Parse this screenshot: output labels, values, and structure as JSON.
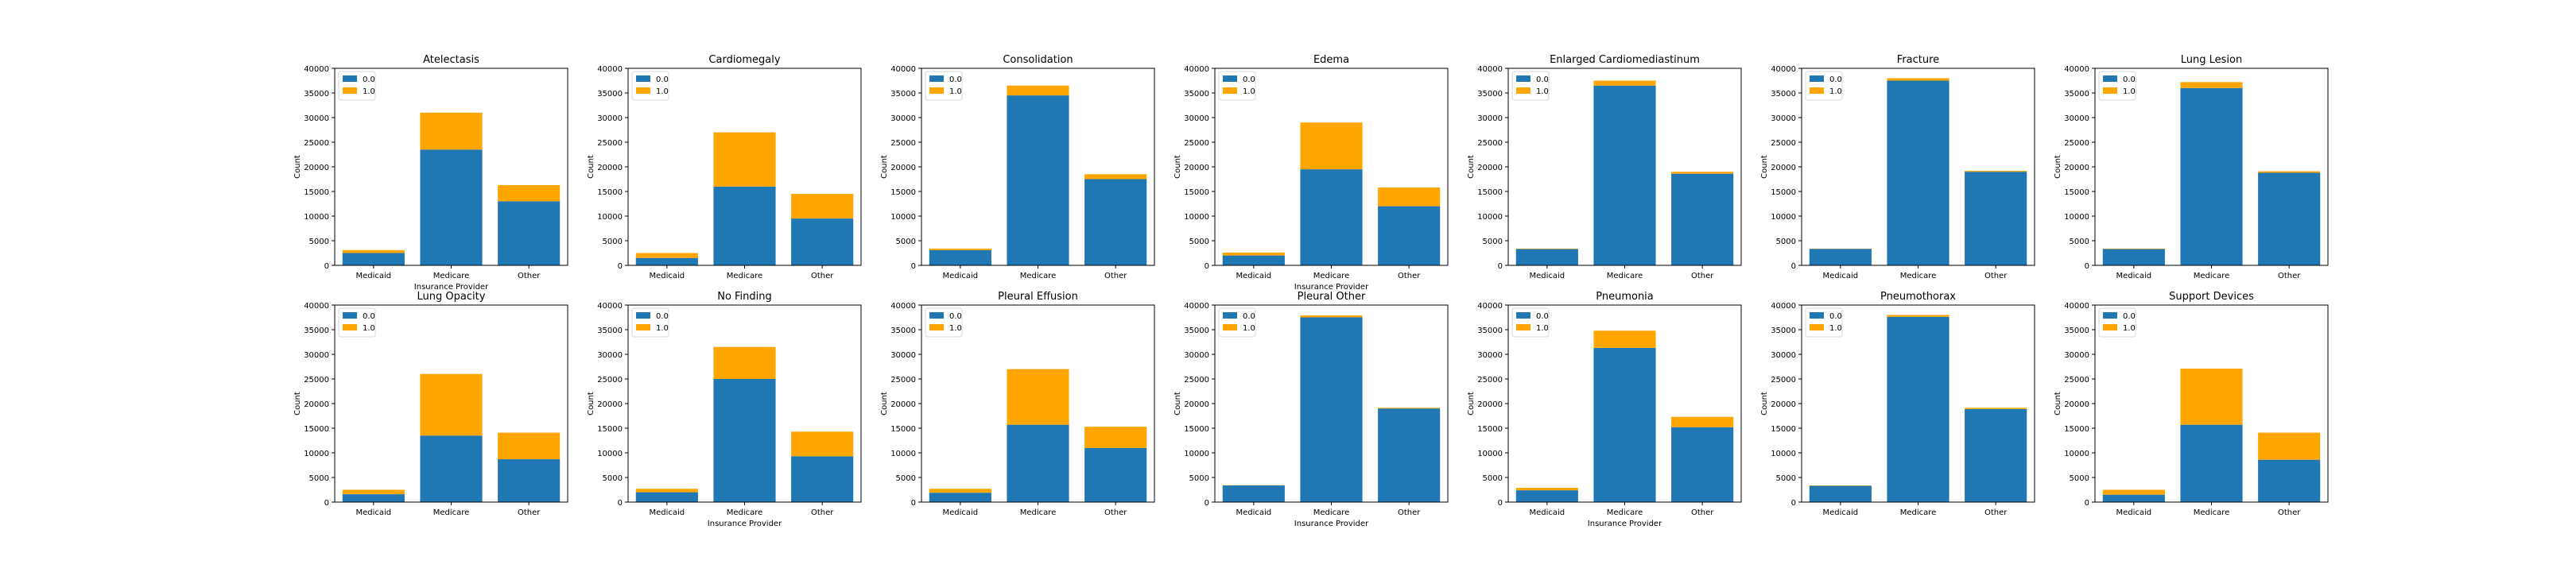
{
  "colors": {
    "series_0": "#1f77b4",
    "series_1": "#ffa500"
  },
  "chart_data": [
    {
      "type": "bar",
      "stacked": true,
      "title": "Atelectasis",
      "xlabel": "Insurance Provider",
      "ylabel": "Count",
      "categories": [
        "Medicaid",
        "Medicare",
        "Other"
      ],
      "ylim": [
        0,
        40000
      ],
      "yticks": [
        0,
        5000,
        10000,
        15000,
        20000,
        25000,
        30000,
        35000,
        40000
      ],
      "legend": "top-left",
      "series": [
        {
          "name": "0.0",
          "values": [
            2500,
            23500,
            13000
          ]
        },
        {
          "name": "1.0",
          "values": [
            600,
            7500,
            3300
          ]
        }
      ]
    },
    {
      "type": "bar",
      "stacked": true,
      "title": "Cardiomegaly",
      "xlabel": "",
      "ylabel": "Count",
      "categories": [
        "Medicaid",
        "Medicare",
        "Other"
      ],
      "ylim": [
        0,
        40000
      ],
      "yticks": [
        0,
        5000,
        10000,
        15000,
        20000,
        25000,
        30000,
        35000,
        40000
      ],
      "legend": "top-left",
      "series": [
        {
          "name": "0.0",
          "values": [
            1500,
            16000,
            9500
          ]
        },
        {
          "name": "1.0",
          "values": [
            1000,
            11000,
            5000
          ]
        }
      ]
    },
    {
      "type": "bar",
      "stacked": true,
      "title": "Consolidation",
      "xlabel": "",
      "ylabel": "Count",
      "categories": [
        "Medicaid",
        "Medicare",
        "Other"
      ],
      "ylim": [
        0,
        40000
      ],
      "yticks": [
        0,
        5000,
        10000,
        15000,
        20000,
        25000,
        30000,
        35000,
        40000
      ],
      "legend": "top-left",
      "series": [
        {
          "name": "0.0",
          "values": [
            3100,
            34500,
            17500
          ]
        },
        {
          "name": "1.0",
          "values": [
            300,
            2000,
            1000
          ]
        }
      ]
    },
    {
      "type": "bar",
      "stacked": true,
      "title": "Edema",
      "xlabel": "Insurance Provider",
      "ylabel": "Count",
      "categories": [
        "Medicaid",
        "Medicare",
        "Other"
      ],
      "ylim": [
        0,
        40000
      ],
      "yticks": [
        0,
        5000,
        10000,
        15000,
        20000,
        25000,
        30000,
        35000,
        40000
      ],
      "legend": "top-left",
      "series": [
        {
          "name": "0.0",
          "values": [
            2000,
            19500,
            12000
          ]
        },
        {
          "name": "1.0",
          "values": [
            600,
            9500,
            3800
          ]
        }
      ]
    },
    {
      "type": "bar",
      "stacked": true,
      "title": "Enlarged Cardiomediastinum",
      "xlabel": "",
      "ylabel": "Count",
      "categories": [
        "Medicaid",
        "Medicare",
        "Other"
      ],
      "ylim": [
        0,
        40000
      ],
      "yticks": [
        0,
        5000,
        10000,
        15000,
        20000,
        25000,
        30000,
        35000,
        40000
      ],
      "legend": "top-left",
      "series": [
        {
          "name": "0.0",
          "values": [
            3300,
            36500,
            18600
          ]
        },
        {
          "name": "1.0",
          "values": [
            100,
            1000,
            400
          ]
        }
      ]
    },
    {
      "type": "bar",
      "stacked": true,
      "title": "Fracture",
      "xlabel": "",
      "ylabel": "Count",
      "categories": [
        "Medicaid",
        "Medicare",
        "Other"
      ],
      "ylim": [
        0,
        40000
      ],
      "yticks": [
        0,
        5000,
        10000,
        15000,
        20000,
        25000,
        30000,
        35000,
        40000
      ],
      "legend": "top-left",
      "series": [
        {
          "name": "0.0",
          "values": [
            3350,
            37500,
            19000
          ]
        },
        {
          "name": "1.0",
          "values": [
            50,
            500,
            200
          ]
        }
      ]
    },
    {
      "type": "bar",
      "stacked": true,
      "title": "Lung Lesion",
      "xlabel": "",
      "ylabel": "Count",
      "categories": [
        "Medicaid",
        "Medicare",
        "Other"
      ],
      "ylim": [
        0,
        40000
      ],
      "yticks": [
        0,
        5000,
        10000,
        15000,
        20000,
        25000,
        30000,
        35000,
        40000
      ],
      "legend": "top-left",
      "series": [
        {
          "name": "0.0",
          "values": [
            3300,
            36000,
            18800
          ]
        },
        {
          "name": "1.0",
          "values": [
            100,
            1200,
            300
          ]
        }
      ]
    },
    {
      "type": "bar",
      "stacked": true,
      "title": "Lung Opacity",
      "xlabel": "",
      "ylabel": "Count",
      "categories": [
        "Medicaid",
        "Medicare",
        "Other"
      ],
      "ylim": [
        0,
        40000
      ],
      "yticks": [
        0,
        5000,
        10000,
        15000,
        20000,
        25000,
        30000,
        35000,
        40000
      ],
      "legend": "top-left",
      "series": [
        {
          "name": "0.0",
          "values": [
            1600,
            13500,
            8700
          ]
        },
        {
          "name": "1.0",
          "values": [
            900,
            12500,
            5400
          ]
        }
      ]
    },
    {
      "type": "bar",
      "stacked": true,
      "title": "No Finding",
      "xlabel": "Insurance Provider",
      "ylabel": "Count",
      "categories": [
        "Medicaid",
        "Medicare",
        "Other"
      ],
      "ylim": [
        0,
        40000
      ],
      "yticks": [
        0,
        5000,
        10000,
        15000,
        20000,
        25000,
        30000,
        35000,
        40000
      ],
      "legend": "top-left",
      "series": [
        {
          "name": "0.0",
          "values": [
            2000,
            25000,
            9300
          ]
        },
        {
          "name": "1.0",
          "values": [
            700,
            6500,
            5000
          ]
        }
      ]
    },
    {
      "type": "bar",
      "stacked": true,
      "title": "Pleural Effusion",
      "xlabel": "",
      "ylabel": "Count",
      "categories": [
        "Medicaid",
        "Medicare",
        "Other"
      ],
      "ylim": [
        0,
        40000
      ],
      "yticks": [
        0,
        5000,
        10000,
        15000,
        20000,
        25000,
        30000,
        35000,
        40000
      ],
      "legend": "top-left",
      "series": [
        {
          "name": "0.0",
          "values": [
            1900,
            15700,
            11000
          ]
        },
        {
          "name": "1.0",
          "values": [
            800,
            11300,
            4300
          ]
        }
      ]
    },
    {
      "type": "bar",
      "stacked": true,
      "title": "Pleural Other",
      "xlabel": "Insurance Provider",
      "ylabel": "Count",
      "categories": [
        "Medicaid",
        "Medicare",
        "Other"
      ],
      "ylim": [
        0,
        40000
      ],
      "yticks": [
        0,
        5000,
        10000,
        15000,
        20000,
        25000,
        30000,
        35000,
        40000
      ],
      "legend": "top-left",
      "series": [
        {
          "name": "0.0",
          "values": [
            3380,
            37500,
            19000
          ]
        },
        {
          "name": "1.0",
          "values": [
            50,
            400,
            150
          ]
        }
      ]
    },
    {
      "type": "bar",
      "stacked": true,
      "title": "Pneumonia",
      "xlabel": "Insurance Provider",
      "ylabel": "Count",
      "categories": [
        "Medicaid",
        "Medicare",
        "Other"
      ],
      "ylim": [
        0,
        40000
      ],
      "yticks": [
        0,
        5000,
        10000,
        15000,
        20000,
        25000,
        30000,
        35000,
        40000
      ],
      "legend": "top-left",
      "series": [
        {
          "name": "0.0",
          "values": [
            2400,
            31300,
            15200
          ]
        },
        {
          "name": "1.0",
          "values": [
            500,
            3500,
            2100
          ]
        }
      ]
    },
    {
      "type": "bar",
      "stacked": true,
      "title": "Pneumothorax",
      "xlabel": "",
      "ylabel": "Count",
      "categories": [
        "Medicaid",
        "Medicare",
        "Other"
      ],
      "ylim": [
        0,
        40000
      ],
      "yticks": [
        0,
        5000,
        10000,
        15000,
        20000,
        25000,
        30000,
        35000,
        40000
      ],
      "legend": "top-left",
      "series": [
        {
          "name": "0.0",
          "values": [
            3300,
            37600,
            18900
          ]
        },
        {
          "name": "1.0",
          "values": [
            80,
            400,
            250
          ]
        }
      ]
    },
    {
      "type": "bar",
      "stacked": true,
      "title": "Support Devices",
      "xlabel": "",
      "ylabel": "Count",
      "categories": [
        "Medicaid",
        "Medicare",
        "Other"
      ],
      "ylim": [
        0,
        40000
      ],
      "yticks": [
        0,
        5000,
        10000,
        15000,
        20000,
        25000,
        30000,
        35000,
        40000
      ],
      "legend": "top-left",
      "series": [
        {
          "name": "0.0",
          "values": [
            1500,
            15700,
            8600
          ]
        },
        {
          "name": "1.0",
          "values": [
            1000,
            11400,
            5500
          ]
        }
      ]
    }
  ]
}
